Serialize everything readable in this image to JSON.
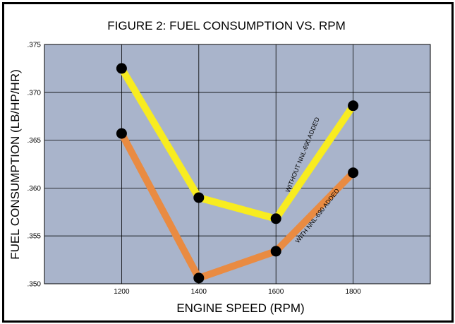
{
  "chart_data": {
    "type": "line",
    "title": "FIGURE 2:  FUEL CONSUMPTION VS. RPM",
    "xlabel": "ENGINE SPEED (RPM)",
    "ylabel": "FUEL CONSUMPTION   (LB/HP/HR)",
    "x": [
      1200,
      1400,
      1600,
      1800
    ],
    "xlim": [
      1000,
      2000
    ],
    "ylim": [
      0.35,
      0.375
    ],
    "x_ticks": [
      1200,
      1400,
      1600,
      1800
    ],
    "x_tick_labels": [
      "1200",
      "1400",
      "1600",
      "1800"
    ],
    "y_ticks": [
      0.35,
      0.355,
      0.36,
      0.365,
      0.37,
      0.375
    ],
    "y_tick_labels": [
      ".350",
      ".355",
      ".360",
      ".365",
      ".370",
      ".375"
    ],
    "grid": true,
    "series": [
      {
        "name": "WITHOUT NNL-690 ADDED",
        "values": [
          0.3725,
          0.359,
          0.3568,
          0.3686
        ],
        "color": "#f8ec20"
      },
      {
        "name": "WITH NNL-690 ADDED",
        "values": [
          0.3657,
          0.3506,
          0.3534,
          0.3616
        ],
        "color": "#e98b42"
      }
    ],
    "colors": {
      "plot_background": "#a9b4cb",
      "marker": "#000000"
    }
  }
}
